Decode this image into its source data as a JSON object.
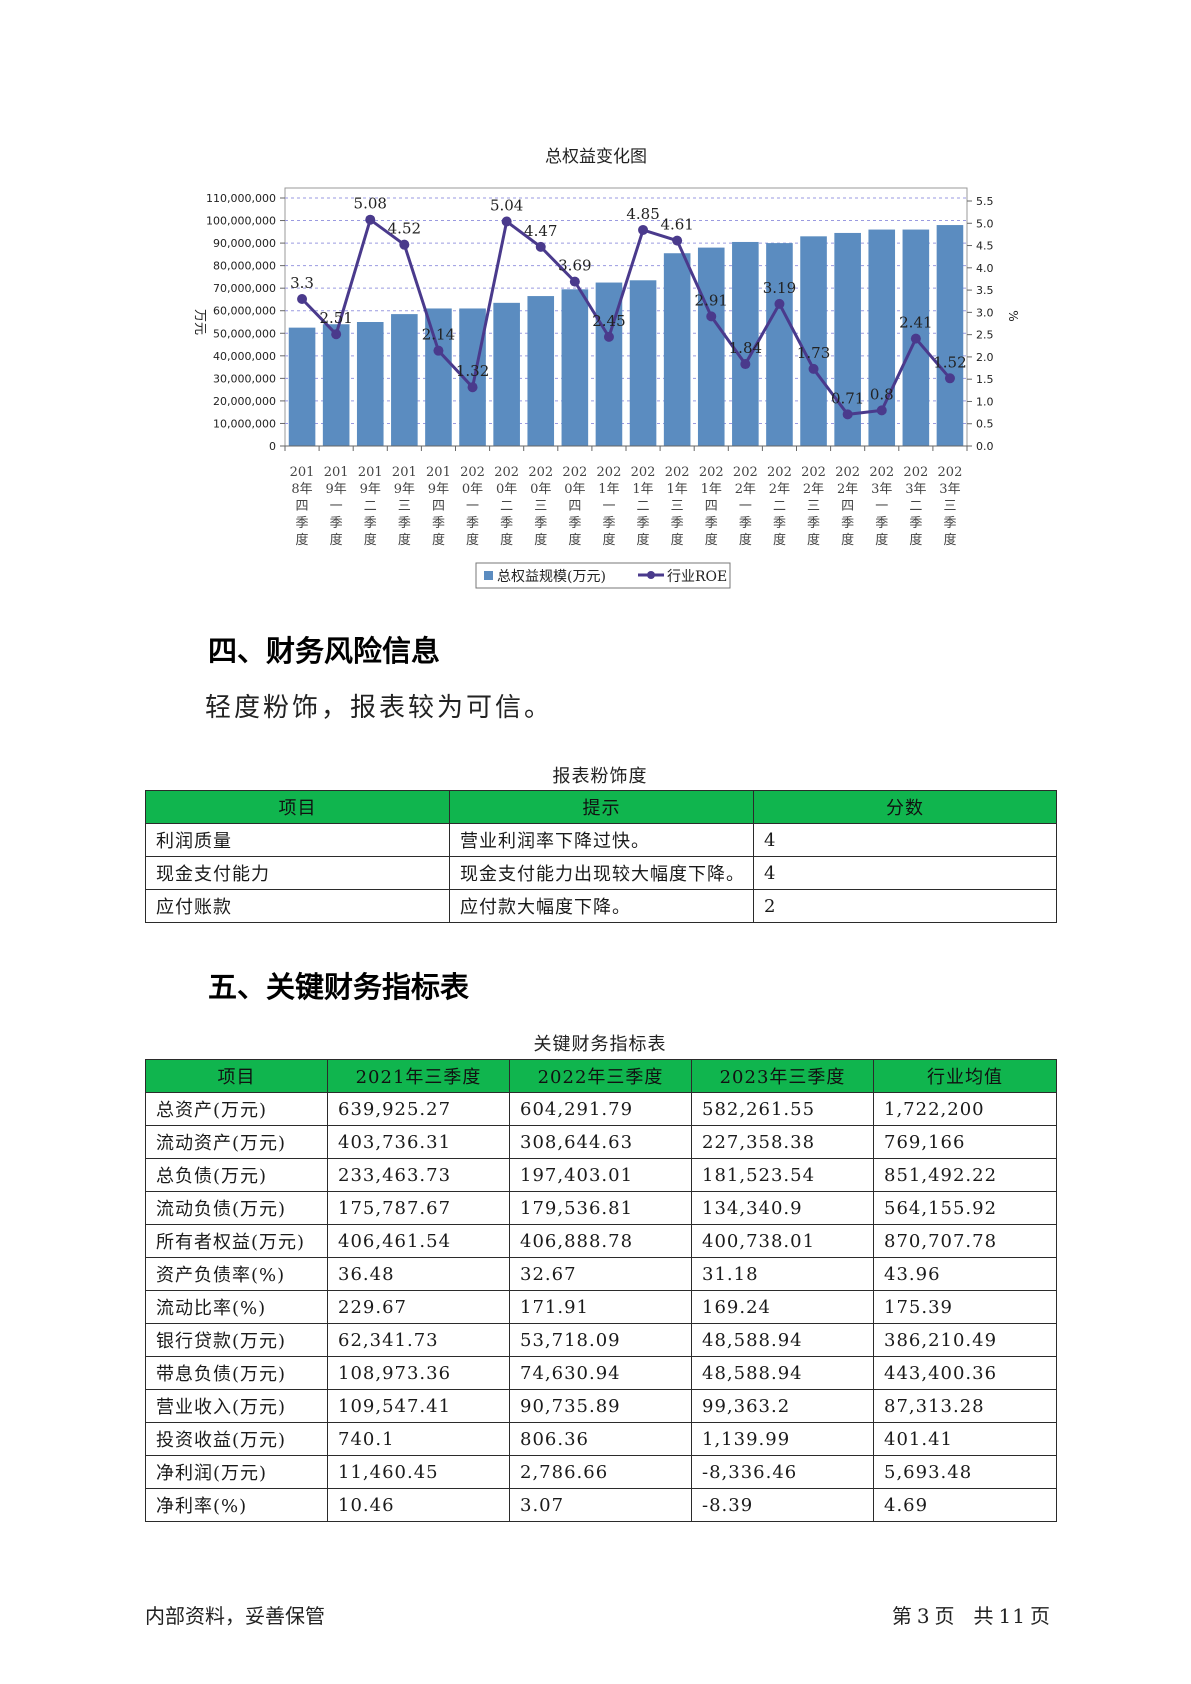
{
  "chart_data": {
    "type": "bar+line",
    "title": "总权益变化图",
    "y_left_label": "万元",
    "y_right_label": "%",
    "y_left_ticks": [
      "0",
      "10,000,000",
      "20,000,000",
      "30,000,000",
      "40,000,000",
      "50,000,000",
      "60,000,000",
      "70,000,000",
      "80,000,000",
      "90,000,000",
      "100,000,000",
      "110,000,000"
    ],
    "y_right_ticks": [
      "0.0",
      "0.5",
      "1.0",
      "1.5",
      "2.0",
      "2.5",
      "3.0",
      "3.5",
      "4.0",
      "4.5",
      "5.0",
      "5.5"
    ],
    "ylim_left": [
      0,
      110000000
    ],
    "ylim_right": [
      0,
      5.75
    ],
    "categories": [
      [
        "201",
        "8年",
        "四",
        "季",
        "度"
      ],
      [
        "201",
        "9年",
        "一",
        "季",
        "度"
      ],
      [
        "201",
        "9年",
        "二",
        "季",
        "度"
      ],
      [
        "201",
        "9年",
        "三",
        "季",
        "度"
      ],
      [
        "201",
        "9年",
        "四",
        "季",
        "度"
      ],
      [
        "202",
        "0年",
        "一",
        "季",
        "度"
      ],
      [
        "202",
        "0年",
        "二",
        "季",
        "度"
      ],
      [
        "202",
        "0年",
        "三",
        "季",
        "度"
      ],
      [
        "202",
        "0年",
        "四",
        "季",
        "度"
      ],
      [
        "202",
        "1年",
        "一",
        "季",
        "度"
      ],
      [
        "202",
        "1年",
        "二",
        "季",
        "度"
      ],
      [
        "202",
        "1年",
        "三",
        "季",
        "度"
      ],
      [
        "202",
        "1年",
        "四",
        "季",
        "度"
      ],
      [
        "202",
        "2年",
        "一",
        "季",
        "度"
      ],
      [
        "202",
        "2年",
        "二",
        "季",
        "度"
      ],
      [
        "202",
        "2年",
        "三",
        "季",
        "度"
      ],
      [
        "202",
        "2年",
        "四",
        "季",
        "度"
      ],
      [
        "202",
        "3年",
        "一",
        "季",
        "度"
      ],
      [
        "202",
        "3年",
        "二",
        "季",
        "度"
      ],
      [
        "202",
        "3年",
        "三",
        "季",
        "度"
      ]
    ],
    "series": [
      {
        "name": "总权益规模(万元)",
        "type": "bar",
        "color": "#5b8cc0",
        "values": [
          52500000,
          54000000,
          55000000,
          58500000,
          61000000,
          61000000,
          63500000,
          66500000,
          69500000,
          72500000,
          73500000,
          85500000,
          88000000,
          90500000,
          90000000,
          93000000,
          94500000,
          96000000,
          96000000,
          98000000
        ]
      },
      {
        "name": "行业ROE",
        "type": "line",
        "color": "#4a3a8c",
        "values": [
          3.3,
          2.51,
          5.08,
          4.52,
          2.14,
          1.32,
          5.04,
          4.47,
          3.69,
          2.45,
          4.85,
          4.61,
          2.91,
          1.84,
          3.19,
          1.73,
          0.71,
          0.8,
          2.41,
          1.52
        ],
        "labels": [
          "3.3",
          "2.51",
          "5.08",
          "4.52",
          "2.14",
          "1.32",
          "5.04",
          "4.47",
          "3.69",
          "2.45",
          "4.85",
          "4.61",
          "2.91",
          "1.84",
          "3.19",
          "1.73",
          "0.71",
          "0.8",
          "2.41",
          "1.52"
        ]
      }
    ],
    "grid": true,
    "legend_position": "bottom"
  },
  "sections": {
    "risk_title": "四、财务风险信息",
    "risk_text": "轻度粉饰，报表较为可信。",
    "key_title": "五、关键财务指标表"
  },
  "risk_table": {
    "caption": "报表粉饰度",
    "headers": [
      "项目",
      "提示",
      "分数"
    ],
    "rows": [
      [
        "利润质量",
        "营业利润率下降过快。",
        "4"
      ],
      [
        "现金支付能力",
        "现金支付能力出现较大幅度下降。",
        "4"
      ],
      [
        "应付账款",
        "应付款大幅度下降。",
        "2"
      ]
    ]
  },
  "key_table": {
    "caption": "关键财务指标表",
    "headers": [
      "项目",
      "2021年三季度",
      "2022年三季度",
      "2023年三季度",
      "行业均值"
    ],
    "rows": [
      [
        "总资产(万元)",
        "639,925.27",
        "604,291.79",
        "582,261.55",
        "1,722,200"
      ],
      [
        "流动资产(万元)",
        "403,736.31",
        "308,644.63",
        "227,358.38",
        "769,166"
      ],
      [
        "总负债(万元)",
        "233,463.73",
        "197,403.01",
        "181,523.54",
        "851,492.22"
      ],
      [
        "流动负债(万元)",
        "175,787.67",
        "179,536.81",
        "134,340.9",
        "564,155.92"
      ],
      [
        "所有者权益(万元)",
        "406,461.54",
        "406,888.78",
        "400,738.01",
        "870,707.78"
      ],
      [
        "资产负债率(%)",
        "36.48",
        "32.67",
        "31.18",
        "43.96"
      ],
      [
        "流动比率(%)",
        "229.67",
        "171.91",
        "169.24",
        "175.39"
      ],
      [
        "银行贷款(万元)",
        "62,341.73",
        "53,718.09",
        "48,588.94",
        "386,210.49"
      ],
      [
        "带息负债(万元)",
        "108,973.36",
        "74,630.94",
        "48,588.94",
        "443,400.36"
      ],
      [
        "营业收入(万元)",
        "109,547.41",
        "90,735.89",
        "99,363.2",
        "87,313.28"
      ],
      [
        "投资收益(万元)",
        "740.1",
        "806.36",
        "1,139.99",
        "401.41"
      ],
      [
        "净利润(万元)",
        "11,460.45",
        "2,786.66",
        "-8,336.46",
        "5,693.48"
      ],
      [
        "净利率(%)",
        "10.46",
        "3.07",
        "-8.39",
        "4.69"
      ]
    ]
  },
  "footer": {
    "left": "内部资料，妥善保管",
    "page_label_pre": "第",
    "page_num": "3",
    "page_label_mid": "页",
    "total_label_pre": "共",
    "total_num": "11",
    "total_label_post": "页"
  }
}
